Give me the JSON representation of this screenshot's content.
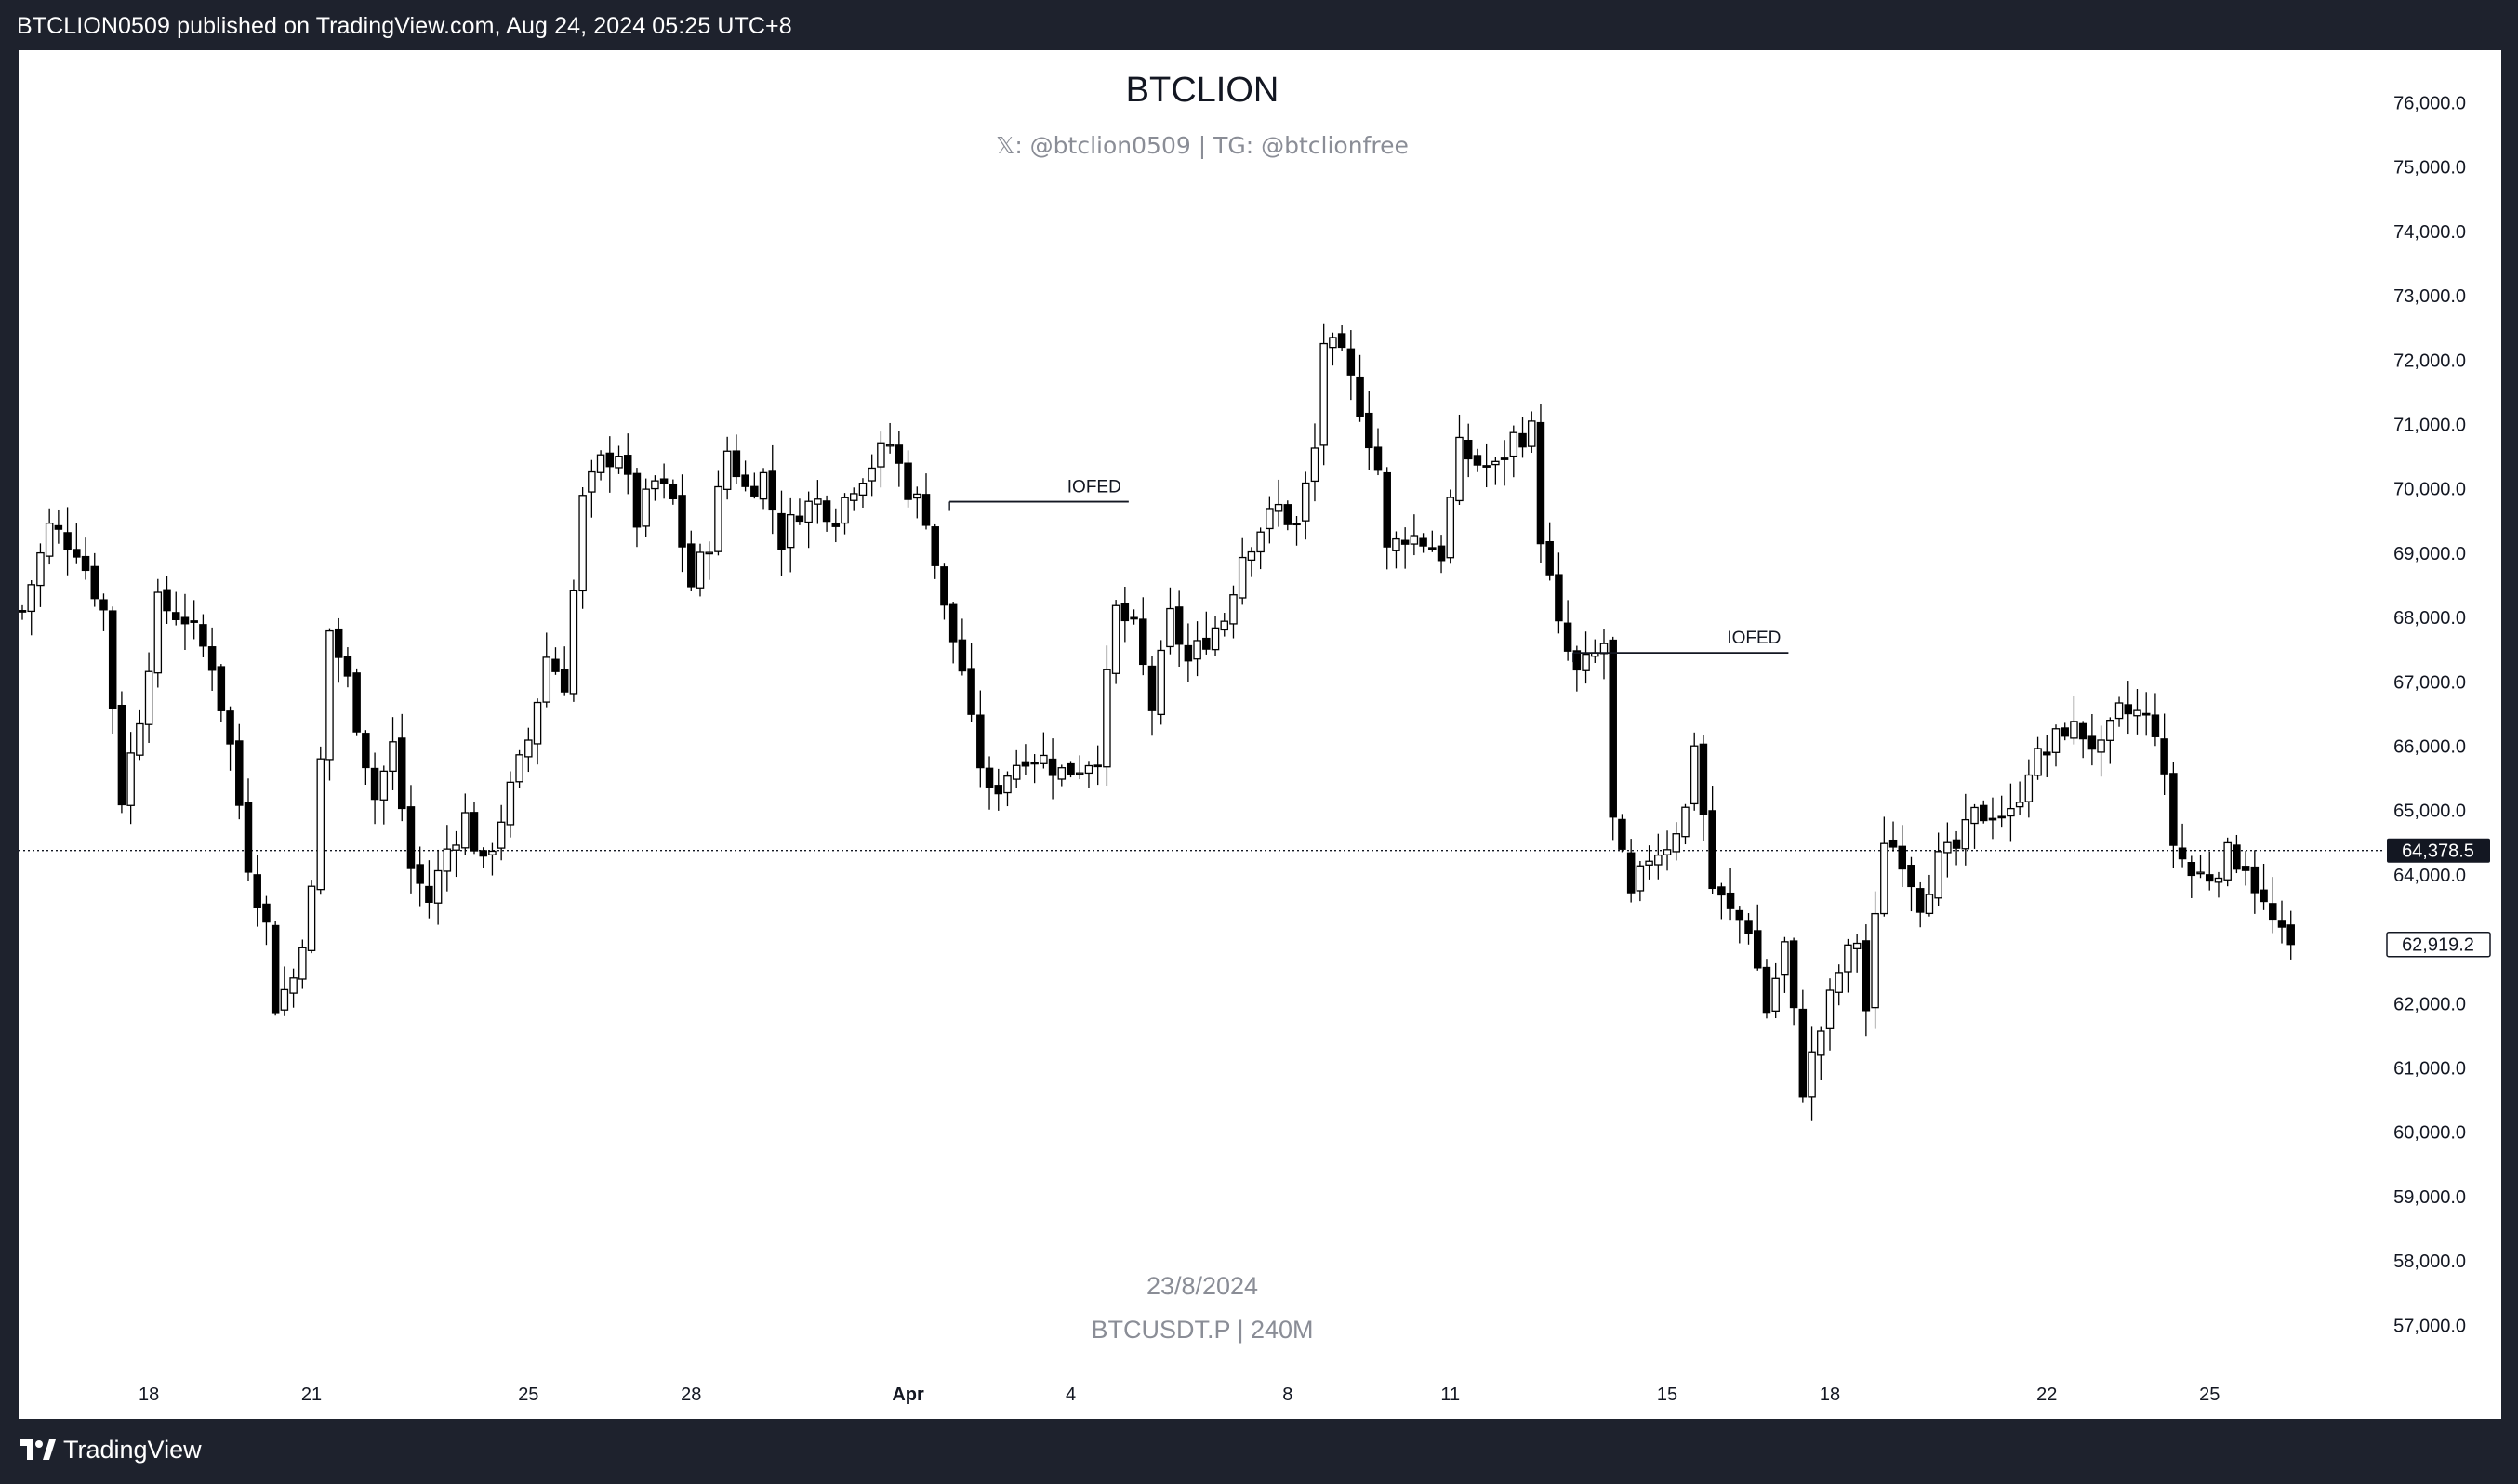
{
  "header": {
    "publisher": "BTCLION0509 published on TradingView.com, Aug 24, 2024 05:25 UTC+8"
  },
  "footer": {
    "brand": "TradingView"
  },
  "chart_data": {
    "type": "candlestick",
    "title": "BTCLION",
    "subtitle": "𝕏: @btclion0509 | TG: @btclionfree",
    "watermark_date": "23/8/2024",
    "watermark_symbol": "BTCUSDT.P | 240M",
    "ylim": [
      56500,
      76500
    ],
    "y_ticks": [
      {
        "value": 76000,
        "label": "76,000.0"
      },
      {
        "value": 75000,
        "label": "75,000.0"
      },
      {
        "value": 74000,
        "label": "74,000.0"
      },
      {
        "value": 73000,
        "label": "73,000.0"
      },
      {
        "value": 72000,
        "label": "72,000.0"
      },
      {
        "value": 71000,
        "label": "71,000.0"
      },
      {
        "value": 70000,
        "label": "70,000.0"
      },
      {
        "value": 69000,
        "label": "69,000.0"
      },
      {
        "value": 68000,
        "label": "68,000.0"
      },
      {
        "value": 67000,
        "label": "67,000.0"
      },
      {
        "value": 66000,
        "label": "66,000.0"
      },
      {
        "value": 65000,
        "label": "65,000.0"
      },
      {
        "value": 64000,
        "label": "64,000.0"
      },
      {
        "value": 63000,
        "label": "63,000.0"
      },
      {
        "value": 62000,
        "label": "62,000.0"
      },
      {
        "value": 61000,
        "label": "61,000.0"
      },
      {
        "value": 60000,
        "label": "60,000.0"
      },
      {
        "value": 59000,
        "label": "59,000.0"
      },
      {
        "value": 58000,
        "label": "58,000.0"
      },
      {
        "value": 57000,
        "label": "57,000.0"
      }
    ],
    "x_ticks": [
      {
        "label": "18",
        "bar": 14,
        "bold": false
      },
      {
        "label": "21",
        "bar": 32,
        "bold": false
      },
      {
        "label": "25",
        "bar": 56,
        "bold": false
      },
      {
        "label": "28",
        "bar": 74,
        "bold": false
      },
      {
        "label": "Apr",
        "bar": 98,
        "bold": true
      },
      {
        "label": "4",
        "bar": 116,
        "bold": false
      },
      {
        "label": "8",
        "bar": 140,
        "bold": false
      },
      {
        "label": "11",
        "bar": 158,
        "bold": false
      },
      {
        "label": "15",
        "bar": 182,
        "bold": false
      },
      {
        "label": "18",
        "bar": 200,
        "bold": false
      },
      {
        "label": "22",
        "bar": 224,
        "bold": false
      },
      {
        "label": "25",
        "bar": 242,
        "bold": false
      }
    ],
    "current_price": {
      "value": 64378.5,
      "label": "64,378.5"
    },
    "last_close": {
      "value": 62919.2,
      "label": "62,919.2"
    },
    "annotations": [
      {
        "text": "IOFED",
        "bar_start": 103,
        "bar_end": 122,
        "price": 69800
      },
      {
        "text": "IOFED",
        "bar_start": 172,
        "bar_end": 195,
        "price": 67450
      }
    ],
    "anchors": [
      [
        0,
        68100
      ],
      [
        3,
        69400
      ],
      [
        6,
        69100
      ],
      [
        9,
        68100
      ],
      [
        11,
        65200
      ],
      [
        13,
        66500
      ],
      [
        15,
        68200
      ],
      [
        18,
        68000
      ],
      [
        21,
        67300
      ],
      [
        23,
        66000
      ],
      [
        25,
        64200
      ],
      [
        27,
        63200
      ],
      [
        28,
        62000
      ],
      [
        30,
        62400
      ],
      [
        32,
        63700
      ],
      [
        34,
        67800
      ],
      [
        36,
        67000
      ],
      [
        38,
        65800
      ],
      [
        39,
        65200
      ],
      [
        41,
        66000
      ],
      [
        43,
        64100
      ],
      [
        45,
        63600
      ],
      [
        47,
        64400
      ],
      [
        49,
        64900
      ],
      [
        51,
        64100
      ],
      [
        53,
        64900
      ],
      [
        56,
        66100
      ],
      [
        58,
        67400
      ],
      [
        60,
        67000
      ],
      [
        62,
        69800
      ],
      [
        64,
        70400
      ],
      [
        66,
        70600
      ],
      [
        68,
        69500
      ],
      [
        70,
        70100
      ],
      [
        72,
        69800
      ],
      [
        74,
        68500
      ],
      [
        76,
        69200
      ],
      [
        78,
        70600
      ],
      [
        80,
        70000
      ],
      [
        82,
        70200
      ],
      [
        84,
        69200
      ],
      [
        86,
        69700
      ],
      [
        88,
        69800
      ],
      [
        90,
        69600
      ],
      [
        92,
        70100
      ],
      [
        94,
        70400
      ],
      [
        96,
        70700
      ],
      [
        98,
        70000
      ],
      [
        100,
        69600
      ],
      [
        102,
        68100
      ],
      [
        104,
        67200
      ],
      [
        105,
        66300
      ],
      [
        107,
        65200
      ],
      [
        109,
        65600
      ],
      [
        111,
        65900
      ],
      [
        113,
        65800
      ],
      [
        115,
        65600
      ],
      [
        117,
        65700
      ],
      [
        119,
        65900
      ],
      [
        121,
        68100
      ],
      [
        123,
        67800
      ],
      [
        125,
        66600
      ],
      [
        127,
        68000
      ],
      [
        129,
        67300
      ],
      [
        131,
        67700
      ],
      [
        133,
        68000
      ],
      [
        135,
        69000
      ],
      [
        137,
        69400
      ],
      [
        139,
        69700
      ],
      [
        141,
        69400
      ],
      [
        143,
        70600
      ],
      [
        144,
        72300
      ],
      [
        146,
        72000
      ],
      [
        148,
        71300
      ],
      [
        150,
        70300
      ],
      [
        151,
        69000
      ],
      [
        153,
        69300
      ],
      [
        155,
        69200
      ],
      [
        157,
        69000
      ],
      [
        159,
        70600
      ],
      [
        161,
        70400
      ],
      [
        163,
        70300
      ],
      [
        165,
        70800
      ],
      [
        167,
        70900
      ],
      [
        168,
        69300
      ],
      [
        170,
        67800
      ],
      [
        172,
        67100
      ],
      [
        174,
        67400
      ],
      [
        175,
        67600
      ],
      [
        176,
        64800
      ],
      [
        178,
        63600
      ],
      [
        180,
        64300
      ],
      [
        182,
        64500
      ],
      [
        184,
        65000
      ],
      [
        185,
        66100
      ],
      [
        187,
        63800
      ],
      [
        189,
        63400
      ],
      [
        191,
        63200
      ],
      [
        193,
        61900
      ],
      [
        195,
        62900
      ],
      [
        197,
        60700
      ],
      [
        199,
        61600
      ],
      [
        201,
        62500
      ],
      [
        203,
        63000
      ],
      [
        204,
        61900
      ],
      [
        206,
        64600
      ],
      [
        208,
        64300
      ],
      [
        210,
        63600
      ],
      [
        212,
        64200
      ],
      [
        214,
        64400
      ],
      [
        216,
        64900
      ],
      [
        218,
        65000
      ],
      [
        220,
        64900
      ],
      [
        222,
        65700
      ],
      [
        224,
        65900
      ],
      [
        226,
        66300
      ],
      [
        228,
        66200
      ],
      [
        230,
        65900
      ],
      [
        232,
        66500
      ],
      [
        234,
        66500
      ],
      [
        236,
        66300
      ],
      [
        238,
        64500
      ],
      [
        240,
        64000
      ],
      [
        242,
        64000
      ],
      [
        244,
        64300
      ],
      [
        246,
        64200
      ],
      [
        248,
        63500
      ],
      [
        250,
        63000
      ],
      [
        251,
        62919
      ]
    ],
    "grid": false,
    "legend": "none"
  }
}
